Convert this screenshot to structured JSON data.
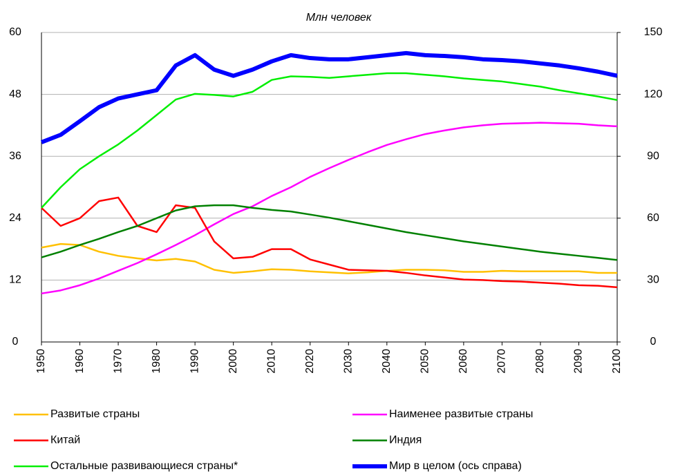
{
  "chart_data": {
    "type": "line",
    "title": "Млн человек",
    "x": [
      1950,
      1955,
      1960,
      1965,
      1970,
      1975,
      1980,
      1985,
      1990,
      1995,
      2000,
      2005,
      2010,
      2015,
      2020,
      2025,
      2030,
      2035,
      2040,
      2045,
      2050,
      2055,
      2060,
      2065,
      2070,
      2075,
      2080,
      2085,
      2090,
      2095,
      2100
    ],
    "xlim": [
      1950,
      2100
    ],
    "xticks": [
      1950,
      1960,
      1970,
      1980,
      1990,
      2000,
      2010,
      2020,
      2030,
      2040,
      2050,
      2060,
      2070,
      2080,
      2090,
      2100
    ],
    "ylim": [
      0,
      60
    ],
    "yticks": [
      0,
      12,
      24,
      36,
      48,
      60
    ],
    "y2lim": [
      0,
      150
    ],
    "y2ticks": [
      0,
      30,
      60,
      90,
      120,
      150
    ],
    "grid": true,
    "series": [
      {
        "name": "Развитые страны",
        "color": "#ffc000",
        "values": [
          18.3,
          19,
          18.8,
          17.5,
          16.7,
          16.2,
          15.8,
          16.1,
          15.6,
          14,
          13.4,
          13.7,
          14.1,
          14,
          13.7,
          13.5,
          13.3,
          13.5,
          13.8,
          14,
          14,
          13.9,
          13.6,
          13.6,
          13.8,
          13.7,
          13.7,
          13.7,
          13.7,
          13.4,
          13.4
        ]
      },
      {
        "name": "Наименее развитые страны",
        "color": "#ff00ff",
        "values": [
          9.4,
          10,
          11,
          12.3,
          13.8,
          15.3,
          17,
          18.8,
          20.7,
          22.8,
          24.8,
          26.3,
          28.3,
          30,
          32,
          33.7,
          35.3,
          36.8,
          38.2,
          39.3,
          40.3,
          41,
          41.6,
          42,
          42.3,
          42.4,
          42.5,
          42.4,
          42.3,
          42,
          41.8
        ]
      },
      {
        "name": "Китай",
        "color": "#ff0000",
        "values": [
          26,
          22.5,
          24,
          27.3,
          28,
          22.5,
          21.3,
          26.5,
          26,
          19.5,
          16.2,
          16.5,
          18,
          18,
          16,
          15,
          14,
          13.9,
          13.8,
          13.4,
          12.9,
          12.5,
          12.1,
          12,
          11.8,
          11.7,
          11.5,
          11.3,
          11,
          10.9,
          10.6
        ]
      },
      {
        "name": "Индия",
        "color": "#008000",
        "values": [
          16.4,
          17.5,
          18.8,
          20,
          21.3,
          22.5,
          24,
          25.5,
          26.3,
          26.5,
          26.5,
          26,
          25.6,
          25.3,
          24.7,
          24.1,
          23.4,
          22.7,
          22,
          21.3,
          20.7,
          20.1,
          19.5,
          19,
          18.5,
          18,
          17.5,
          17.1,
          16.7,
          16.3,
          15.9
        ]
      },
      {
        "name": "Остальные развивающиеся страны*",
        "color": "#00ee00",
        "values": [
          26,
          30,
          33.5,
          36,
          38.3,
          41,
          44,
          47,
          48.1,
          47.9,
          47.6,
          48.5,
          50.8,
          51.5,
          51.4,
          51.2,
          51.5,
          51.8,
          52.1,
          52.1,
          51.8,
          51.5,
          51.1,
          50.8,
          50.5,
          50,
          49.5,
          48.8,
          48.2,
          47.6,
          46.9
        ]
      },
      {
        "name": "Мир в целом (ось справа)",
        "color": "#0000ff",
        "axis": "y2",
        "values": [
          96.8,
          100.4,
          107,
          113.8,
          118,
          120,
          122,
          134,
          139,
          132,
          129,
          132,
          136,
          139,
          137.6,
          137,
          137,
          138,
          139,
          140,
          139,
          138.6,
          138,
          137,
          136.6,
          136,
          135,
          134,
          132.6,
          131,
          129
        ]
      }
    ]
  }
}
